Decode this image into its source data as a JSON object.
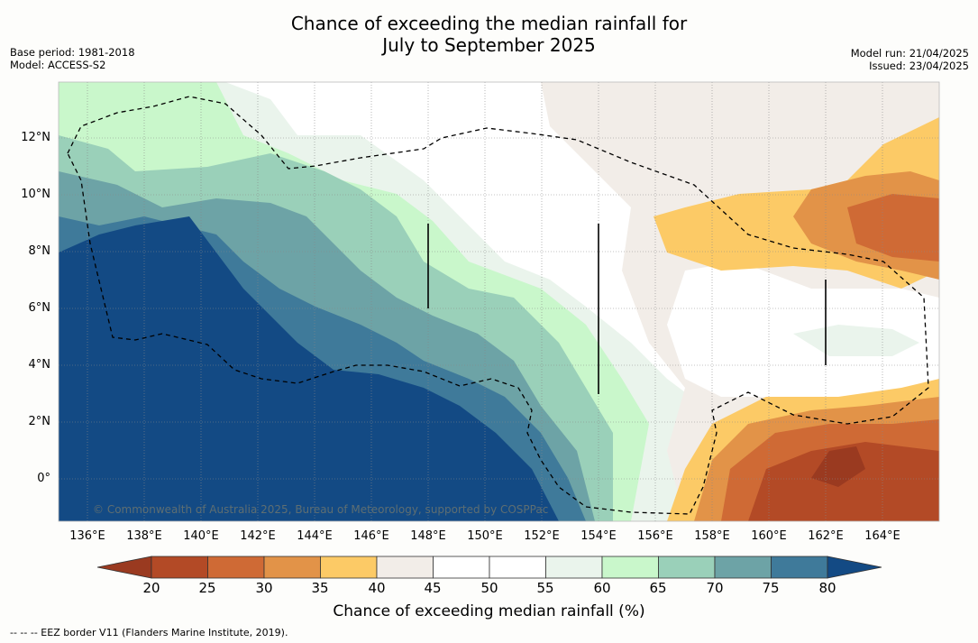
{
  "title_line1": "Chance of exceeding the median rainfall for",
  "title_line2": "July to September 2025",
  "meta_left_line1": "Base period: 1981-2018",
  "meta_left_line2": "Model: ACCESS-S2",
  "meta_right_line1": "Model run: 21/04/2025",
  "meta_right_line2": "Issued: 23/04/2025",
  "credit": "© Commonwealth of Australia 2025, Bureau of Meteorology, supported by COSPPac",
  "lat_labels": [
    "12°N",
    "10°N",
    "8°N",
    "6°N",
    "4°N",
    "2°N",
    "0°"
  ],
  "lon_labels": [
    "136°E",
    "138°E",
    "140°E",
    "142°E",
    "144°E",
    "146°E",
    "148°E",
    "150°E",
    "152°E",
    "154°E",
    "156°E",
    "158°E",
    "160°E",
    "162°E",
    "164°E"
  ],
  "colorbar": {
    "title": "Chance of exceeding median rainfall (%)",
    "ticks": [
      "20",
      "25",
      "30",
      "35",
      "40",
      "45",
      "50",
      "55",
      "60",
      "65",
      "70",
      "75",
      "80"
    ],
    "colors": [
      "#9a3a20",
      "#b34a26",
      "#cf6a35",
      "#e29348",
      "#fcca66",
      "#f2ede8",
      "#ffffff",
      "#ffffff",
      "#eaf4ec",
      "#c9f7cb",
      "#9ad0b9",
      "#6da3a6",
      "#3f7a9a",
      "#134a84"
    ]
  },
  "footnote": "--  --  -- EEZ border V11 (Flanders Marine Institute, 2019)."
}
